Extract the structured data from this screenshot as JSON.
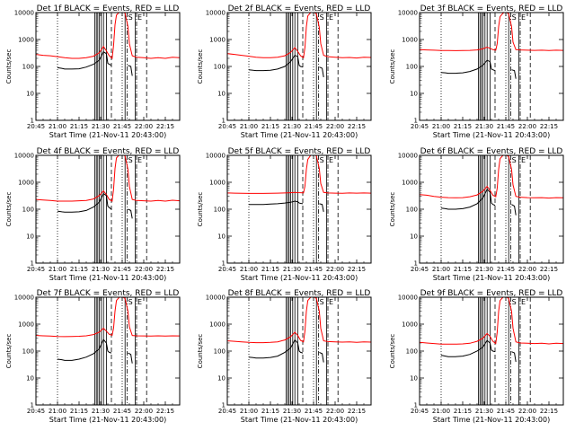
{
  "page": {
    "x_title": "Start Time (21-Nov-11 20:43:00)",
    "y_title": "Counts/sec",
    "time_ticks": [
      "20:45",
      "21:00",
      "21:15",
      "21:30",
      "21:45",
      "22:00",
      "22:15"
    ],
    "count_ticks": [
      "1",
      "10",
      "100",
      "1000",
      "10000"
    ],
    "marker_labels": [
      "S",
      "E"
    ],
    "panel_titles": [
      "Det 1f BLACK = Events, RED = LLD",
      "Det 2f BLACK = Events, RED = LLD",
      "Det 3f BLACK = Events, RED = LLD",
      "Det 4f BLACK = Events, RED = LLD",
      "Det 5f BLACK = Events, RED = LLD",
      "Det 6f BLACK = Events, RED = LLD",
      "Det 7f BLACK = Events, RED = LLD",
      "Det 8f BLACK = Events, RED = LLD",
      "Det 9f BLACK = Events, RED = LLD"
    ]
  },
  "chart_data": {
    "type": "line",
    "layout": "3x3 grid of panels",
    "x_unit": "minutes after 20:45",
    "x_range": [
      0,
      100
    ],
    "y_scale": "log",
    "y_range": [
      1,
      10000
    ],
    "colors": {
      "events": "#000000",
      "lld": "#ff0000",
      "axes": "#000000"
    },
    "dotted_lines_x": [
      15,
      60
    ],
    "solid_lines_x": [
      41,
      42,
      43,
      44,
      45.5,
      47,
      49,
      62,
      69
    ],
    "dashed_lines_x": [
      52.5,
      77
    ],
    "dashdot_lines_x": [
      63.5,
      70
    ],
    "series_names": [
      "Events",
      "LLD"
    ],
    "panels": [
      {
        "detector": "1f",
        "events": {
          "x": [
            15,
            18,
            20,
            25,
            30,
            35,
            40,
            44,
            47,
            49,
            50,
            51,
            52.5
          ],
          "y": [
            90,
            85,
            80,
            80,
            82,
            95,
            120,
            170,
            350,
            300,
            130,
            120,
            110
          ],
          "x2": [
            64,
            66,
            67
          ],
          "y2": [
            110,
            100,
            45
          ]
        },
        "lld": {
          "x": [
            0,
            5,
            10,
            15,
            20,
            25,
            30,
            35,
            40,
            44,
            47,
            49,
            51,
            53,
            54,
            55,
            56,
            58,
            60,
            62,
            64,
            65,
            67,
            70,
            75,
            80,
            85,
            90,
            95,
            100
          ],
          "y": [
            280,
            260,
            250,
            230,
            210,
            200,
            200,
            210,
            240,
            320,
            550,
            380,
            250,
            200,
            600,
            3500,
            8000,
            10500,
            11000,
            9500,
            3000,
            700,
            250,
            220,
            210,
            200,
            210,
            200,
            220,
            210
          ]
        }
      },
      {
        "detector": "2f",
        "events": {
          "x": [
            15,
            18,
            20,
            25,
            30,
            35,
            40,
            44,
            47,
            49,
            50,
            51,
            52.5
          ],
          "y": [
            75,
            72,
            70,
            70,
            72,
            80,
            100,
            150,
            260,
            230,
            110,
            100,
            95
          ],
          "x2": [
            64,
            66,
            67
          ],
          "y2": [
            95,
            85,
            40
          ]
        },
        "lld": {
          "x": [
            0,
            5,
            10,
            15,
            20,
            25,
            30,
            35,
            40,
            44,
            47,
            49,
            51,
            53,
            54,
            55,
            56,
            58,
            60,
            62,
            64,
            65,
            67,
            70,
            75,
            80,
            85,
            90,
            95,
            100
          ],
          "y": [
            300,
            280,
            260,
            240,
            220,
            210,
            210,
            220,
            250,
            330,
            500,
            360,
            250,
            210,
            500,
            3000,
            7500,
            10000,
            10500,
            9000,
            2800,
            700,
            260,
            230,
            220,
            210,
            215,
            205,
            220,
            215
          ]
        }
      },
      {
        "detector": "3f",
        "events": {
          "x": [
            15,
            18,
            20,
            25,
            30,
            35,
            40,
            44,
            47,
            49,
            50,
            51,
            52.5
          ],
          "y": [
            60,
            58,
            56,
            56,
            58,
            65,
            80,
            110,
            170,
            150,
            80,
            75,
            70
          ],
          "x2": [
            64,
            66,
            67
          ],
          "y2": [
            75,
            70,
            35
          ]
        },
        "lld": {
          "x": [
            0,
            5,
            10,
            15,
            20,
            25,
            30,
            35,
            40,
            44,
            47,
            49,
            51,
            53,
            54,
            55,
            56,
            58,
            60,
            62,
            64,
            65,
            67,
            70,
            75,
            80,
            85,
            90,
            95,
            100
          ],
          "y": [
            420,
            410,
            400,
            390,
            390,
            385,
            390,
            395,
            410,
            450,
            520,
            470,
            420,
            400,
            700,
            3000,
            7000,
            9500,
            10500,
            9000,
            3000,
            800,
            420,
            410,
            400,
            395,
            400,
            390,
            400,
            395
          ]
        }
      },
      {
        "detector": "4f",
        "events": {
          "x": [
            15,
            18,
            20,
            25,
            30,
            35,
            40,
            44,
            47,
            49,
            50,
            51,
            52.5
          ],
          "y": [
            85,
            80,
            78,
            78,
            80,
            90,
            120,
            180,
            380,
            320,
            130,
            115,
            100
          ],
          "x2": [
            64,
            66,
            67
          ],
          "y2": [
            100,
            90,
            45
          ]
        },
        "lld": {
          "x": [
            0,
            5,
            10,
            15,
            20,
            25,
            30,
            35,
            40,
            44,
            47,
            49,
            51,
            53,
            54,
            55,
            56,
            58,
            60,
            62,
            64,
            65,
            67,
            70,
            75,
            80,
            85,
            90,
            95,
            100
          ],
          "y": [
            230,
            220,
            210,
            200,
            200,
            200,
            205,
            210,
            240,
            320,
            480,
            350,
            230,
            200,
            550,
            3200,
            8000,
            10500,
            11000,
            9500,
            3000,
            700,
            230,
            210,
            205,
            200,
            210,
            200,
            215,
            205
          ]
        }
      },
      {
        "detector": "5f",
        "events": {
          "x": [
            15,
            18,
            20,
            25,
            30,
            35,
            40,
            44,
            47,
            49,
            50,
            51,
            52.5
          ],
          "y": [
            150,
            150,
            150,
            150,
            155,
            160,
            170,
            180,
            200,
            190,
            170,
            165,
            160
          ],
          "x2": [
            64,
            66,
            67
          ],
          "y2": [
            160,
            150,
            80
          ]
        },
        "lld": {
          "x": [
            0,
            5,
            10,
            15,
            20,
            25,
            30,
            35,
            40,
            44,
            47,
            49,
            51,
            53,
            54,
            55,
            56,
            58,
            60,
            62,
            64,
            65,
            67,
            70,
            75,
            80,
            85,
            90,
            95,
            100
          ],
          "y": [
            400,
            395,
            390,
            385,
            385,
            385,
            390,
            395,
            400,
            410,
            420,
            415,
            410,
            405,
            700,
            3000,
            7000,
            10000,
            11000,
            9500,
            3200,
            900,
            420,
            400,
            395,
            390,
            400,
            395,
            400,
            395
          ]
        }
      },
      {
        "detector": "6f",
        "events": {
          "x": [
            15,
            18,
            20,
            25,
            30,
            35,
            40,
            44,
            47,
            49,
            50,
            51,
            52.5
          ],
          "y": [
            110,
            105,
            100,
            100,
            105,
            120,
            160,
            260,
            550,
            430,
            170,
            150,
            140
          ],
          "x2": [
            64,
            66,
            67
          ],
          "y2": [
            150,
            130,
            60
          ]
        },
        "lld": {
          "x": [
            0,
            5,
            10,
            15,
            20,
            25,
            30,
            35,
            40,
            44,
            47,
            49,
            51,
            53,
            54,
            55,
            56,
            58,
            60,
            62,
            64,
            65,
            67,
            70,
            75,
            80,
            85,
            90,
            95,
            100
          ],
          "y": [
            350,
            330,
            300,
            280,
            270,
            265,
            270,
            290,
            340,
            460,
            700,
            500,
            330,
            290,
            600,
            3000,
            7500,
            10000,
            10500,
            9000,
            3000,
            800,
            300,
            280,
            270,
            265,
            270,
            260,
            270,
            265
          ]
        }
      },
      {
        "detector": "7f",
        "events": {
          "x": [
            15,
            18,
            20,
            25,
            30,
            35,
            40,
            44,
            47,
            49,
            50,
            51,
            52.5
          ],
          "y": [
            50,
            48,
            45,
            45,
            50,
            60,
            80,
            120,
            270,
            200,
            100,
            90,
            85
          ],
          "x2": [
            64,
            66,
            67
          ],
          "y2": [
            85,
            75,
            35
          ]
        },
        "lld": {
          "x": [
            0,
            5,
            10,
            15,
            20,
            25,
            30,
            35,
            40,
            44,
            47,
            49,
            51,
            53,
            54,
            55,
            56,
            58,
            60,
            62,
            64,
            65,
            67,
            70,
            75,
            80,
            85,
            90,
            95,
            100
          ],
          "y": [
            380,
            370,
            360,
            350,
            345,
            350,
            355,
            370,
            410,
            500,
            700,
            550,
            420,
            390,
            700,
            3000,
            7500,
            10000,
            10500,
            9000,
            3000,
            800,
            380,
            370,
            365,
            360,
            370,
            360,
            370,
            365
          ]
        }
      },
      {
        "detector": "8f",
        "events": {
          "x": [
            15,
            18,
            20,
            25,
            30,
            35,
            40,
            44,
            47,
            49,
            50,
            51,
            52.5
          ],
          "y": [
            60,
            57,
            55,
            55,
            58,
            65,
            90,
            130,
            260,
            200,
            100,
            90,
            85
          ],
          "x2": [
            64,
            66,
            67
          ],
          "y2": [
            90,
            80,
            38
          ]
        },
        "lld": {
          "x": [
            0,
            5,
            10,
            15,
            20,
            25,
            30,
            35,
            40,
            44,
            47,
            49,
            51,
            53,
            54,
            55,
            56,
            58,
            60,
            62,
            64,
            65,
            67,
            70,
            75,
            80,
            85,
            90,
            95,
            100
          ],
          "y": [
            240,
            230,
            220,
            210,
            205,
            205,
            210,
            220,
            260,
            340,
            500,
            380,
            250,
            220,
            550,
            3000,
            7500,
            10000,
            10500,
            9000,
            3000,
            700,
            240,
            225,
            220,
            215,
            220,
            210,
            220,
            215
          ]
        }
      },
      {
        "detector": "9f",
        "events": {
          "x": [
            15,
            18,
            20,
            25,
            30,
            35,
            40,
            44,
            47,
            49,
            50,
            51,
            52.5
          ],
          "y": [
            70,
            65,
            62,
            62,
            65,
            75,
            100,
            140,
            250,
            200,
            110,
            100,
            95
          ],
          "x2": [
            64,
            66,
            67
          ],
          "y2": [
            95,
            85,
            40
          ]
        },
        "lld": {
          "x": [
            0,
            5,
            10,
            15,
            20,
            25,
            30,
            35,
            40,
            44,
            47,
            49,
            51,
            53,
            54,
            55,
            56,
            58,
            60,
            62,
            64,
            65,
            67,
            70,
            75,
            80,
            85,
            90,
            95,
            100
          ],
          "y": [
            210,
            200,
            190,
            180,
            180,
            180,
            185,
            195,
            230,
            300,
            450,
            350,
            230,
            190,
            500,
            3000,
            7500,
            10000,
            10500,
            9000,
            3000,
            700,
            220,
            200,
            195,
            190,
            195,
            185,
            195,
            190
          ]
        }
      }
    ]
  }
}
